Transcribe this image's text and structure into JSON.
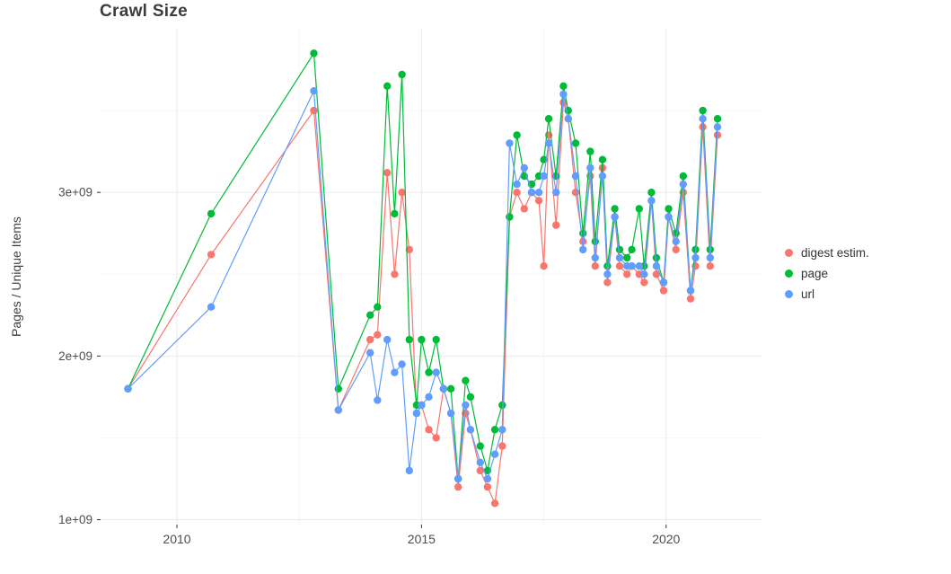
{
  "title": "Crawl Size",
  "legend": {
    "items": [
      {
        "label": "digest estim.",
        "color": "#F8766D"
      },
      {
        "label": "page",
        "color": "#00BA38"
      },
      {
        "label": "url",
        "color": "#619CFF"
      }
    ]
  },
  "chart_data": {
    "type": "line",
    "title": "Crawl Size",
    "xlabel": "",
    "ylabel": "Pages / Unique Items",
    "legend_position": "right",
    "grid": true,
    "xlim": [
      2008.44,
      2021.95
    ],
    "ylim": [
      970000000,
      4000000000
    ],
    "x_ticks": [
      2010,
      2015,
      2020
    ],
    "x_tick_labels": [
      "2010",
      "2015",
      "2020"
    ],
    "x_minor_ticks": [
      2012.5,
      2017.5
    ],
    "y_ticks": [
      1000000000,
      2000000000,
      3000000000
    ],
    "y_tick_labels": [
      "1e+09",
      "2e+09",
      "3e+09"
    ],
    "y_minor_ticks": [
      1500000000,
      2500000000,
      3500000000
    ],
    "x": [
      2009.0,
      2010.7,
      2012.8,
      2013.3,
      2013.95,
      2014.1,
      2014.3,
      2014.45,
      2014.6,
      2014.75,
      2014.9,
      2015.0,
      2015.15,
      2015.3,
      2015.45,
      2015.6,
      2015.75,
      2015.9,
      2016.0,
      2016.2,
      2016.35,
      2016.5,
      2016.65,
      2016.8,
      2016.95,
      2017.1,
      2017.25,
      2017.4,
      2017.5,
      2017.6,
      2017.75,
      2017.9,
      2018.0,
      2018.15,
      2018.3,
      2018.45,
      2018.55,
      2018.7,
      2018.8,
      2018.95,
      2019.05,
      2019.2,
      2019.3,
      2019.45,
      2019.55,
      2019.7,
      2019.8,
      2019.95,
      2020.05,
      2020.2,
      2020.35,
      2020.5,
      2020.6,
      2020.75,
      2020.9,
      2021.05
    ],
    "series": [
      {
        "name": "digest estim.",
        "color": "#F8766D",
        "values": [
          1800000000.0,
          2620000000.0,
          3500000000.0,
          1670000000.0,
          2100000000.0,
          2130000000.0,
          3120000000.0,
          2500000000.0,
          3000000000.0,
          2650000000.0,
          1650000000.0,
          1700000000.0,
          1550000000.0,
          1500000000.0,
          1800000000.0,
          1650000000.0,
          1200000000.0,
          1650000000.0,
          1550000000.0,
          1300000000.0,
          1200000000.0,
          1100000000.0,
          1450000000.0,
          2850000000.0,
          3000000000.0,
          2900000000.0,
          3000000000.0,
          2950000000.0,
          2550000000.0,
          3350000000.0,
          2800000000.0,
          3550000000.0,
          3450000000.0,
          3000000000.0,
          2700000000.0,
          3100000000.0,
          2550000000.0,
          3150000000.0,
          2450000000.0,
          2850000000.0,
          2550000000.0,
          2500000000.0,
          2550000000.0,
          2500000000.0,
          2450000000.0,
          2950000000.0,
          2500000000.0,
          2400000000.0,
          2850000000.0,
          2650000000.0,
          3000000000.0,
          2350000000.0,
          2550000000.0,
          3400000000.0,
          2550000000.0,
          3350000000.0
        ]
      },
      {
        "name": "page",
        "color": "#00BA38",
        "values": [
          1800000000.0,
          2870000000.0,
          3850000000.0,
          1800000000.0,
          2250000000.0,
          2300000000.0,
          3650000000.0,
          2870000000.0,
          3720000000.0,
          2100000000.0,
          1700000000.0,
          2100000000.0,
          1900000000.0,
          2100000000.0,
          1800000000.0,
          1800000000.0,
          1250000000.0,
          1850000000.0,
          1750000000.0,
          1450000000.0,
          1300000000.0,
          1550000000.0,
          1700000000.0,
          2850000000.0,
          3350000000.0,
          3100000000.0,
          3050000000.0,
          3100000000.0,
          3200000000.0,
          3450000000.0,
          3100000000.0,
          3650000000.0,
          3500000000.0,
          3300000000.0,
          2750000000.0,
          3250000000.0,
          2700000000.0,
          3200000000.0,
          2550000000.0,
          2900000000.0,
          2650000000.0,
          2600000000.0,
          2650000000.0,
          2900000000.0,
          2550000000.0,
          3000000000.0,
          2600000000.0,
          2450000000.0,
          2900000000.0,
          2750000000.0,
          3100000000.0,
          2400000000.0,
          2650000000.0,
          3500000000.0,
          2650000000.0,
          3450000000.0
        ]
      },
      {
        "name": "url",
        "color": "#619CFF",
        "values": [
          1800000000.0,
          2300000000.0,
          3620000000.0,
          1670000000.0,
          2020000000.0,
          1730000000.0,
          2100000000.0,
          1900000000.0,
          1950000000.0,
          1300000000.0,
          1650000000.0,
          1700000000.0,
          1750000000.0,
          1900000000.0,
          1800000000.0,
          1650000000.0,
          1250000000.0,
          1700000000.0,
          1550000000.0,
          1350000000.0,
          1250000000.0,
          1400000000.0,
          1550000000.0,
          3300000000.0,
          3050000000.0,
          3150000000.0,
          3000000000.0,
          3000000000.0,
          3100000000.0,
          3300000000.0,
          3000000000.0,
          3600000000.0,
          3450000000.0,
          3100000000.0,
          2650000000.0,
          3150000000.0,
          2600000000.0,
          3100000000.0,
          2500000000.0,
          2850000000.0,
          2600000000.0,
          2550000000.0,
          2550000000.0,
          2550000000.0,
          2500000000.0,
          2950000000.0,
          2550000000.0,
          2450000000.0,
          2850000000.0,
          2700000000.0,
          3050000000.0,
          2400000000.0,
          2600000000.0,
          3450000000.0,
          2600000000.0,
          3400000000.0
        ]
      }
    ],
    "style": {
      "grid_major_color": "#ebebeb",
      "grid_minor_color": "#f6f6f6",
      "tick_color": "#333333",
      "tick_label_color": "#4d4d4d"
    }
  }
}
